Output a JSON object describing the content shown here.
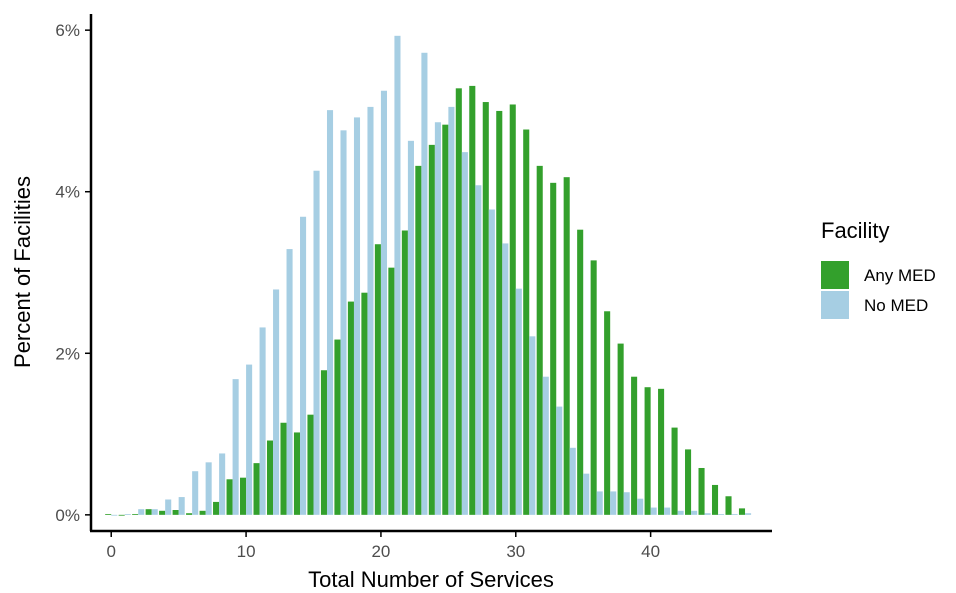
{
  "chart_data": {
    "type": "bar",
    "xlabel": "Total Number of Services",
    "ylabel": "Percent of Facilities",
    "xlim": [
      -1.5,
      49
    ],
    "ylim": [
      -0.2,
      6.2
    ],
    "x_ticks": [
      0,
      10,
      20,
      30,
      40
    ],
    "y_ticks": [
      0,
      2,
      4,
      6
    ],
    "y_tick_labels": [
      "0%",
      "2%",
      "4%",
      "6%"
    ],
    "grid": false,
    "legend_position": "right",
    "legend_title": "Facility",
    "x": [
      0,
      1,
      2,
      3,
      4,
      5,
      6,
      7,
      8,
      9,
      10,
      11,
      12,
      13,
      14,
      15,
      16,
      17,
      18,
      19,
      20,
      21,
      22,
      23,
      24,
      25,
      26,
      27,
      28,
      29,
      30,
      31,
      32,
      33,
      34,
      35,
      36,
      37,
      38,
      39,
      40,
      41,
      42,
      43,
      44,
      45,
      46,
      47
    ],
    "series": [
      {
        "name": "Any MED",
        "color": "#33a02c",
        "values": [
          0.01,
          0.0,
          0.01,
          0.07,
          0.05,
          0.06,
          0.02,
          0.05,
          0.16,
          0.44,
          0.46,
          0.64,
          0.92,
          1.14,
          1.02,
          1.24,
          1.79,
          2.17,
          2.64,
          2.75,
          3.35,
          3.06,
          3.52,
          4.32,
          4.58,
          4.83,
          5.28,
          5.31,
          5.11,
          5.0,
          5.08,
          4.77,
          4.32,
          4.11,
          4.18,
          3.53,
          3.15,
          2.52,
          2.12,
          1.71,
          1.58,
          1.56,
          1.08,
          0.81,
          0.58,
          0.37,
          0.23,
          0.08
        ]
      },
      {
        "name": "No MED",
        "color": "#a6cee3",
        "values": [
          0.0,
          0.01,
          0.07,
          0.07,
          0.19,
          0.22,
          0.54,
          0.65,
          0.76,
          1.68,
          1.86,
          2.32,
          2.79,
          3.29,
          3.69,
          4.26,
          5.01,
          4.76,
          4.92,
          5.05,
          5.25,
          5.93,
          4.63,
          5.72,
          4.86,
          5.05,
          4.49,
          4.08,
          3.78,
          3.36,
          2.8,
          2.21,
          1.71,
          1.34,
          0.83,
          0.51,
          0.29,
          0.29,
          0.28,
          0.2,
          0.09,
          0.09,
          0.05,
          0.05,
          0.02,
          0.01,
          0.01,
          0.02
        ]
      }
    ]
  }
}
